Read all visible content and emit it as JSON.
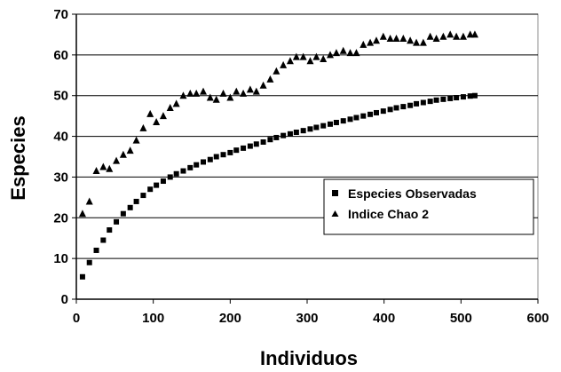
{
  "chart_data": {
    "type": "scatter",
    "xlabel": "Individuos",
    "ylabel": "Especies",
    "xlim": [
      0,
      600
    ],
    "ylim": [
      0,
      70
    ],
    "xticks": [
      0,
      100,
      200,
      300,
      400,
      500,
      600
    ],
    "yticks": [
      0,
      10,
      20,
      30,
      40,
      50,
      60,
      70
    ],
    "grid": "horizontal",
    "legend_position": "right",
    "series": [
      {
        "name": "Especies Observadas",
        "marker": "square",
        "color": "#000000",
        "x": [
          8,
          17,
          26,
          35,
          43,
          52,
          61,
          70,
          78,
          87,
          96,
          104,
          113,
          122,
          130,
          139,
          148,
          156,
          165,
          174,
          182,
          191,
          200,
          208,
          217,
          226,
          234,
          243,
          252,
          260,
          269,
          278,
          286,
          295,
          304,
          312,
          321,
          330,
          338,
          347,
          356,
          364,
          373,
          382,
          390,
          399,
          408,
          416,
          425,
          434,
          442,
          451,
          460,
          468,
          477,
          486,
          494,
          503,
          512,
          518
        ],
        "y": [
          5.5,
          9,
          12,
          14.5,
          17,
          19,
          21,
          22.5,
          24,
          25.5,
          27,
          28,
          29,
          30,
          30.8,
          31.5,
          32.3,
          33,
          33.7,
          34.3,
          35,
          35.5,
          36,
          36.6,
          37.1,
          37.6,
          38.1,
          38.6,
          39.2,
          39.7,
          40.2,
          40.6,
          41,
          41.4,
          41.8,
          42.2,
          42.6,
          43,
          43.4,
          43.8,
          44.2,
          44.6,
          45,
          45.4,
          45.8,
          46.2,
          46.6,
          47,
          47.3,
          47.6,
          48,
          48.3,
          48.6,
          48.9,
          49.1,
          49.3,
          49.5,
          49.7,
          49.9,
          50
        ]
      },
      {
        "name": "Indice Chao 2",
        "marker": "triangle",
        "color": "#000000",
        "x": [
          8,
          17,
          26,
          35,
          43,
          52,
          61,
          70,
          78,
          87,
          96,
          104,
          113,
          122,
          130,
          139,
          148,
          156,
          165,
          174,
          182,
          191,
          200,
          208,
          217,
          226,
          234,
          243,
          252,
          260,
          269,
          278,
          286,
          295,
          304,
          312,
          321,
          330,
          338,
          347,
          356,
          364,
          373,
          382,
          390,
          399,
          408,
          416,
          425,
          434,
          442,
          451,
          460,
          468,
          477,
          486,
          494,
          503,
          512,
          518
        ],
        "y": [
          21,
          24,
          31.5,
          32.5,
          32,
          34,
          35.5,
          36.5,
          39,
          42,
          45.5,
          43.5,
          45,
          47,
          48,
          50,
          50.5,
          50.5,
          51,
          49.5,
          49,
          50.5,
          49.5,
          51,
          50.5,
          51.5,
          51,
          52.5,
          54,
          56,
          57.5,
          58.5,
          59.5,
          59.5,
          58.5,
          59.5,
          59,
          60,
          60.5,
          61,
          60.5,
          60.5,
          62.5,
          63,
          63.5,
          64.5,
          64,
          64,
          64,
          63.5,
          63,
          63,
          64.5,
          64,
          64.5,
          65,
          64.5,
          64.5,
          65,
          65
        ]
      }
    ]
  }
}
